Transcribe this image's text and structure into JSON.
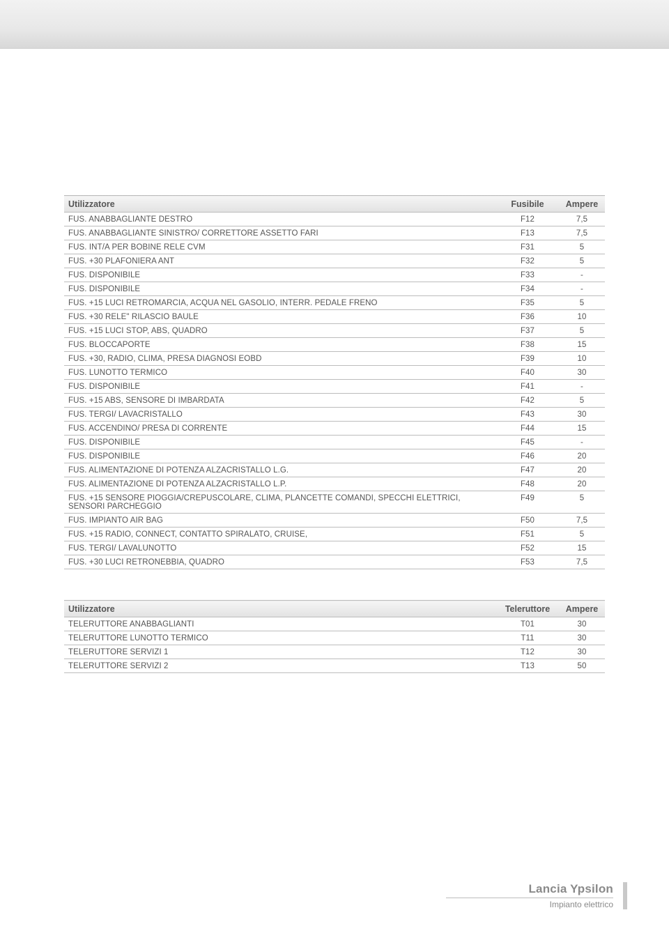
{
  "fuse_table": {
    "columns": [
      "Utilizzatore",
      "Fusibile",
      "Ampere"
    ],
    "rows": [
      [
        "FUS. ANABBAGLIANTE DESTRO",
        "F12",
        "7,5"
      ],
      [
        "FUS. ANABBAGLIANTE SINISTRO/ CORRETTORE ASSETTO FARI",
        "F13",
        "7,5"
      ],
      [
        "FUS. INT/A PER BOBINE RELE CVM",
        "F31",
        "5"
      ],
      [
        "FUS. +30 PLAFONIERA ANT",
        "F32",
        "5"
      ],
      [
        "FUS. DISPONIBILE",
        "F33",
        "-"
      ],
      [
        "FUS. DISPONIBILE",
        "F34",
        "-"
      ],
      [
        "FUS. +15 LUCI RETROMARCIA, ACQUA NEL GASOLIO, INTERR. PEDALE FRENO",
        "F35",
        "5"
      ],
      [
        "FUS. +30 RELE\" RILASCIO BAULE",
        "F36",
        "10"
      ],
      [
        "FUS. +15 LUCI STOP, ABS, QUADRO",
        "F37",
        "5"
      ],
      [
        "FUS. BLOCCAPORTE",
        "F38",
        "15"
      ],
      [
        "FUS. +30, RADIO, CLIMA, PRESA DIAGNOSI EOBD",
        "F39",
        "10"
      ],
      [
        "FUS. LUNOTTO TERMICO",
        "F40",
        "30"
      ],
      [
        "FUS. DISPONIBILE",
        "F41",
        "-"
      ],
      [
        "FUS. +15 ABS, SENSORE DI IMBARDATA",
        "F42",
        "5"
      ],
      [
        "FUS. TERGI/ LAVACRISTALLO",
        "F43",
        "30"
      ],
      [
        "FUS. ACCENDINO/ PRESA DI CORRENTE",
        "F44",
        "15"
      ],
      [
        "FUS. DISPONIBILE",
        "F45",
        "-"
      ],
      [
        "FUS. DISPONIBILE",
        "F46",
        "20"
      ],
      [
        "FUS. ALIMENTAZIONE DI POTENZA ALZACRISTALLO L.G.",
        "F47",
        "20"
      ],
      [
        "FUS. ALIMENTAZIONE DI POTENZA ALZACRISTALLO L.P.",
        "F48",
        "20"
      ],
      [
        "FUS. +15 SENSORE PIOGGIA/CREPUSCOLARE, CLIMA, PLANCETTE COMANDI, SPECCHI ELETTRICI, SENSORI PARCHEGGIO",
        "F49",
        "5"
      ],
      [
        "FUS. IMPIANTO AIR BAG",
        "F50",
        "7,5"
      ],
      [
        "FUS. +15 RADIO, CONNECT, CONTATTO SPIRALATO, CRUISE,",
        "F51",
        "5"
      ],
      [
        "FUS. TERGI/ LAVALUNOTTO",
        "F52",
        "15"
      ],
      [
        "FUS. +30 LUCI RETRONEBBIA, QUADRO",
        "F53",
        "7,5"
      ]
    ]
  },
  "relay_table": {
    "columns": [
      "Utilizzatore",
      "Teleruttore",
      "Ampere"
    ],
    "rows": [
      [
        "TELERUTTORE ANABBAGLIANTI",
        "T01",
        "30"
      ],
      [
        "TELERUTTORE LUNOTTO TERMICO",
        "T11",
        "30"
      ],
      [
        "TELERUTTORE SERVIZI 1",
        "T12",
        "30"
      ],
      [
        "TELERUTTORE SERVIZI 2",
        "T13",
        "50"
      ]
    ]
  },
  "footer": {
    "brand": "Lancia Ypsilon",
    "section": "Impianto elettrico"
  }
}
